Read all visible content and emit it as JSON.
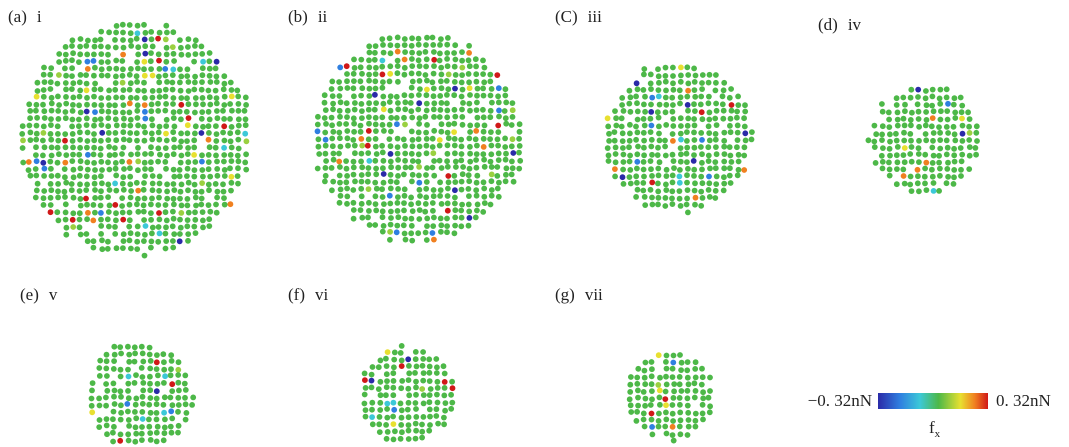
{
  "panels": [
    {
      "label": "(a)",
      "name": "i"
    },
    {
      "label": "(b)",
      "name": "ii"
    },
    {
      "label": "(C)",
      "name": "iii"
    },
    {
      "label": "(d)",
      "name": "iv"
    },
    {
      "label": "(e)",
      "name": "v"
    },
    {
      "label": "(f)",
      "name": "vi"
    },
    {
      "label": "(g)",
      "name": "vii"
    }
  ],
  "colorbar": {
    "min_label": "−0. 32nN",
    "max_label": "0. 32nN",
    "title": "f",
    "title_sub": "x"
  }
}
